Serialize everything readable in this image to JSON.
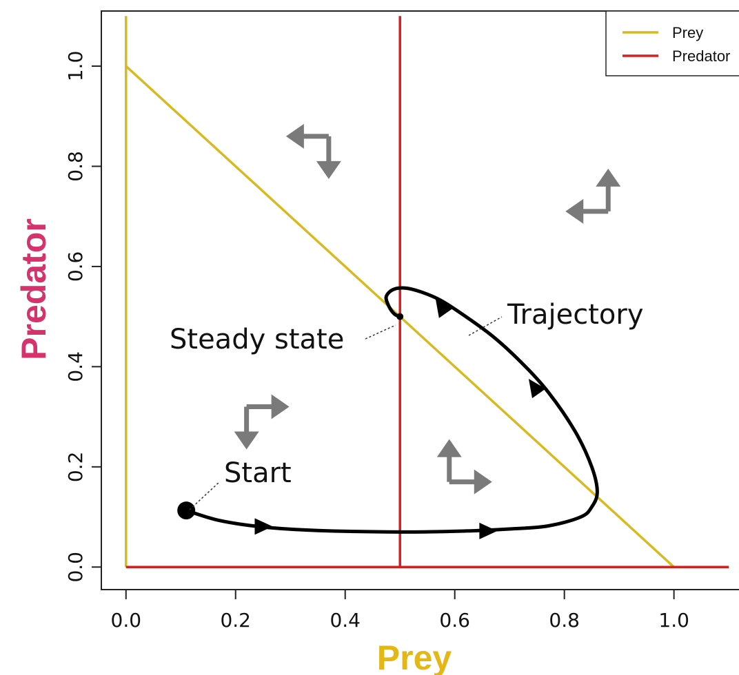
{
  "chart_data": {
    "type": "line",
    "xlabel": "Prey",
    "ylabel": "Predator",
    "xlim": [
      -0.045,
      1.125
    ],
    "ylim": [
      -0.045,
      1.11
    ],
    "x_ticks": [
      "0.0",
      "0.2",
      "0.4",
      "0.6",
      "0.8",
      "1.0"
    ],
    "y_ticks": [
      "0.0",
      "0.2",
      "0.4",
      "0.6",
      "0.8",
      "1.0"
    ],
    "grid": false,
    "legend_position": "top-right",
    "colors": {
      "prey": "#D9B920",
      "predator": "#D42020",
      "trajectory": "#000000",
      "arrows": "#7A7A7A",
      "xlabel": "#E3B816",
      "ylabel": "#D6336C"
    },
    "series": [
      {
        "name": "Prey",
        "segments": [
          {
            "x": [
              0,
              0
            ],
            "y": [
              0,
              1.1
            ]
          },
          {
            "x": [
              0,
              1
            ],
            "y": [
              1,
              0
            ]
          }
        ]
      },
      {
        "name": "Predator",
        "segments": [
          {
            "x": [
              0.5,
              0.5
            ],
            "y": [
              0,
              1.1
            ]
          },
          {
            "x": [
              0,
              1.1
            ],
            "y": [
              0,
              0
            ]
          }
        ]
      }
    ],
    "trajectory": {
      "x": [
        0.11,
        0.17,
        0.25,
        0.35,
        0.5,
        0.62,
        0.7,
        0.77,
        0.83,
        0.85,
        0.86,
        0.85,
        0.82,
        0.77,
        0.72,
        0.67,
        0.62,
        0.57,
        0.52,
        0.49,
        0.475,
        0.48,
        0.49,
        0.5
      ],
      "y": [
        0.113,
        0.093,
        0.08,
        0.073,
        0.07,
        0.072,
        0.076,
        0.082,
        0.1,
        0.12,
        0.15,
        0.2,
        0.27,
        0.35,
        0.41,
        0.46,
        0.5,
        0.535,
        0.555,
        0.555,
        0.54,
        0.52,
        0.505,
        0.5
      ],
      "arrow_points": [
        {
          "x": 0.25,
          "y": 0.081,
          "dir": "right"
        },
        {
          "x": 0.66,
          "y": 0.072,
          "dir": "right"
        },
        {
          "x": 0.745,
          "y": 0.36,
          "dir": "up-left"
        },
        {
          "x": 0.575,
          "y": 0.52,
          "dir": "up-left"
        }
      ]
    },
    "flow_arrows": [
      {
        "x": 0.37,
        "y": 0.86,
        "h": "left",
        "v": "down"
      },
      {
        "x": 0.88,
        "y": 0.71,
        "h": "left",
        "v": "up"
      },
      {
        "x": 0.22,
        "y": 0.32,
        "h": "right",
        "v": "down"
      },
      {
        "x": 0.59,
        "y": 0.17,
        "h": "right",
        "v": "up"
      }
    ],
    "points": [
      {
        "label": "Start",
        "x": 0.11,
        "y": 0.113,
        "marker": "large-dot"
      },
      {
        "label": "Steady state",
        "x": 0.5,
        "y": 0.5,
        "marker": "small-dot"
      }
    ],
    "annotations": {
      "start": "Start",
      "steady_state": "Steady state",
      "trajectory": "Trajectory"
    }
  }
}
